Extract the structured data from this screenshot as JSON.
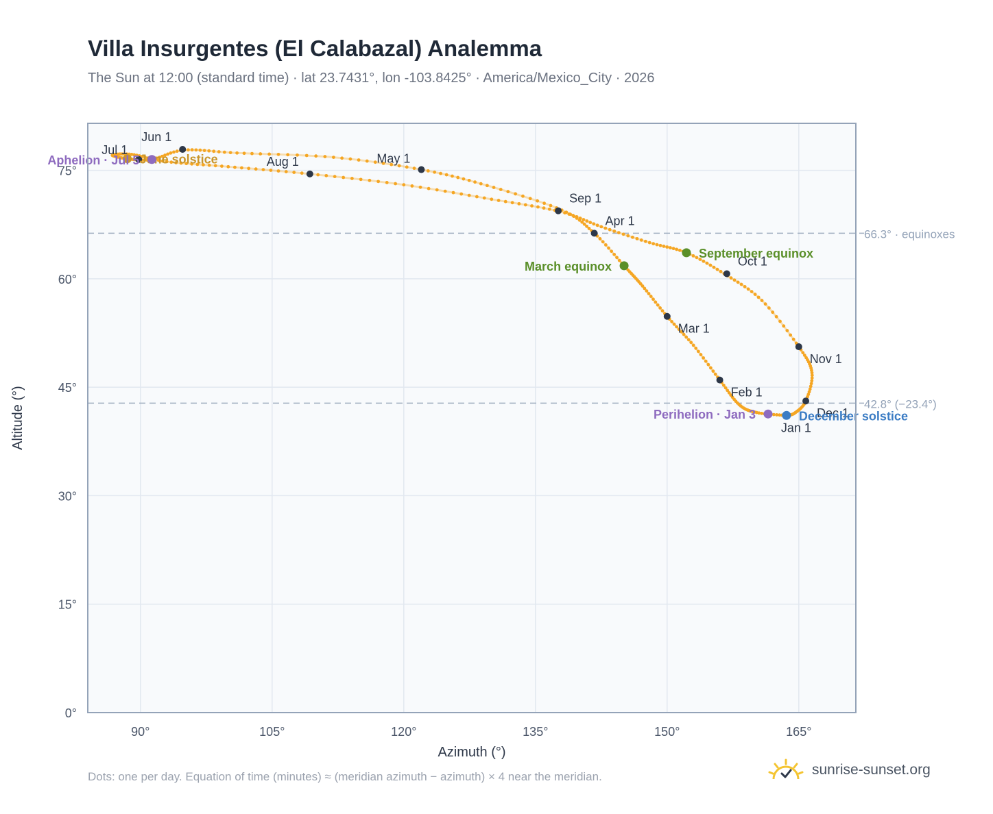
{
  "header": {
    "title": "Villa Insurgentes (El Calabazal) Analemma",
    "subtitle": "The Sun at 12:00 (standard time) · lat 23.7431°, lon -103.8425° · America/Mexico_City · 2026"
  },
  "footer": {
    "note": "Dots: one per day. Equation of time (minutes) ≈ (meridian azimuth − azimuth) × 4 near the meridian.",
    "brand": "sunrise-sunset.org"
  },
  "colors": {
    "path": "#f5a623",
    "month_marker": "#2d3748",
    "equinox": "#5a8f29",
    "june_solstice": "#c9962b",
    "december_solstice": "#3b7cc4",
    "apsis": "#8e6bbf",
    "reference_line": "#a0aec0",
    "grid": "#e2e8f0",
    "plot_bg": "#f8fafc",
    "frame": "#94a3b8"
  },
  "chart_data": {
    "type": "scatter",
    "title": "Villa Insurgentes (El Calabazal) Analemma",
    "xlabel": "Azimuth (°)",
    "ylabel": "Altitude (°)",
    "xlim": [
      84,
      171.5
    ],
    "ylim": [
      0,
      81.5
    ],
    "x_ticks": [
      90,
      105,
      120,
      135,
      150,
      165
    ],
    "x_tick_labels": [
      "90°",
      "105°",
      "120°",
      "135°",
      "150°",
      "165°"
    ],
    "y_ticks": [
      0,
      15,
      30,
      45,
      60,
      75
    ],
    "y_tick_labels": [
      "0°",
      "15°",
      "30°",
      "45°",
      "60°",
      "75°"
    ],
    "grid": true,
    "series": [
      {
        "points": [
          [
            163.5,
            41.1
          ],
          [
            160.2,
            41.5
          ],
          [
            158.2,
            42.6
          ],
          [
            156.0,
            46.0
          ],
          [
            153.0,
            50.8
          ],
          [
            150.0,
            54.8
          ],
          [
            147.2,
            59.0
          ],
          [
            145.1,
            61.8
          ],
          [
            141.7,
            66.3
          ],
          [
            138.0,
            69.5
          ],
          [
            129.5,
            72.9
          ],
          [
            122.0,
            75.1
          ],
          [
            112.0,
            76.8
          ],
          [
            101.0,
            77.4
          ],
          [
            95.0,
            77.8
          ],
          [
            91.3,
            76.5
          ],
          [
            88.5,
            76.6
          ],
          [
            86.8,
            77.1
          ],
          [
            89.0,
            77.2
          ],
          [
            93.0,
            76.2
          ],
          [
            100.0,
            75.5
          ],
          [
            109.3,
            74.5
          ],
          [
            120.0,
            73.0
          ],
          [
            130.0,
            71.0
          ],
          [
            137.8,
            69.3
          ],
          [
            142.5,
            67.2
          ],
          [
            148.0,
            65.0
          ],
          [
            152.2,
            63.6
          ],
          [
            156.5,
            60.7
          ],
          [
            160.8,
            57.0
          ],
          [
            165.0,
            50.6
          ],
          [
            166.5,
            47.0
          ],
          [
            165.8,
            43.1
          ],
          [
            164.5,
            41.4
          ],
          [
            163.5,
            41.1
          ]
        ]
      }
    ],
    "month_markers": [
      {
        "label": "Jan 1",
        "az": 163.6,
        "alt": 41.1
      },
      {
        "label": "Feb 1",
        "az": 156.0,
        "alt": 46.0
      },
      {
        "label": "Mar 1",
        "az": 150.0,
        "alt": 54.8
      },
      {
        "label": "Apr 1",
        "az": 141.7,
        "alt": 66.3
      },
      {
        "label": "May 1",
        "az": 122.0,
        "alt": 75.1
      },
      {
        "label": "Jun 1",
        "az": 94.8,
        "alt": 77.9
      },
      {
        "label": "Jul 1",
        "az": 89.8,
        "alt": 76.5
      },
      {
        "label": "Aug 1",
        "az": 109.3,
        "alt": 74.5
      },
      {
        "label": "Sep 1",
        "az": 137.6,
        "alt": 69.4
      },
      {
        "label": "Oct 1",
        "az": 156.8,
        "alt": 60.7
      },
      {
        "label": "Nov 1",
        "az": 165.0,
        "alt": 50.6
      },
      {
        "label": "Dec 1",
        "az": 165.8,
        "alt": 43.1
      }
    ],
    "events": [
      {
        "label": "March equinox",
        "az": 145.1,
        "alt": 61.8,
        "color_key": "equinox",
        "anchor": "left"
      },
      {
        "label": "September equinox",
        "az": 152.2,
        "alt": 63.6,
        "color_key": "equinox",
        "anchor": "right"
      },
      {
        "label": "June solstice",
        "az": 88.5,
        "alt": 76.6,
        "color_key": "june_solstice",
        "anchor": "right"
      },
      {
        "label": "December solstice",
        "az": 163.6,
        "alt": 41.1,
        "color_key": "december_solstice",
        "anchor": "right"
      },
      {
        "label": "Aphelion · Jul 5",
        "az": 91.3,
        "alt": 76.5,
        "color_key": "apsis",
        "anchor": "left"
      },
      {
        "label": "Perihelion · Jan 3",
        "az": 161.5,
        "alt": 41.3,
        "color_key": "apsis",
        "anchor": "left"
      }
    ],
    "reference_lines": [
      {
        "alt": 66.3,
        "label": "66.3° · equinoxes"
      },
      {
        "alt": 42.8,
        "label": "42.8° (−23.4°)"
      }
    ]
  }
}
